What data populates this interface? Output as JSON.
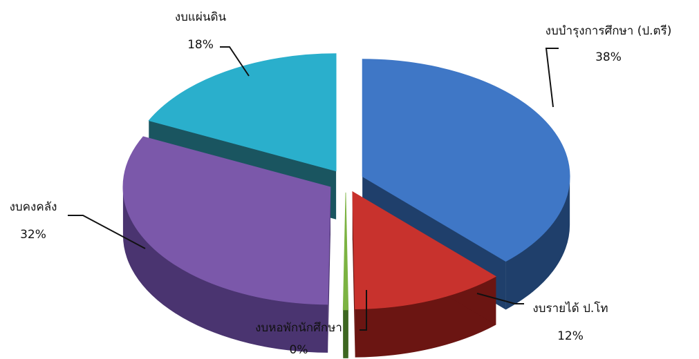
{
  "chart_data": {
    "type": "pie",
    "style": "3d-exploded",
    "title": "",
    "slices": [
      {
        "name": "งบบำรุงการศึกษา (ป.ตรี)",
        "value": 38,
        "value_label": "38%",
        "color": "#3f77c6",
        "side_color": "#1f3f6b"
      },
      {
        "name": "งบรายได้ ป.โท",
        "value": 12,
        "value_label": "12%",
        "color": "#c8322d",
        "side_color": "#6b1512"
      },
      {
        "name": "งบหอพักนักศึกษา",
        "value": 0.4,
        "value_label": "0%",
        "color": "#7cb342",
        "side_color": "#3d6620"
      },
      {
        "name": "งบคงคลัง",
        "value": 32,
        "value_label": "32%",
        "color": "#7b58aa",
        "side_color": "#4a3470"
      },
      {
        "name": "งบแผ่นดิน",
        "value": 18,
        "value_label": "18%",
        "color": "#2aafcc",
        "side_color": "#1a5560"
      }
    ]
  }
}
